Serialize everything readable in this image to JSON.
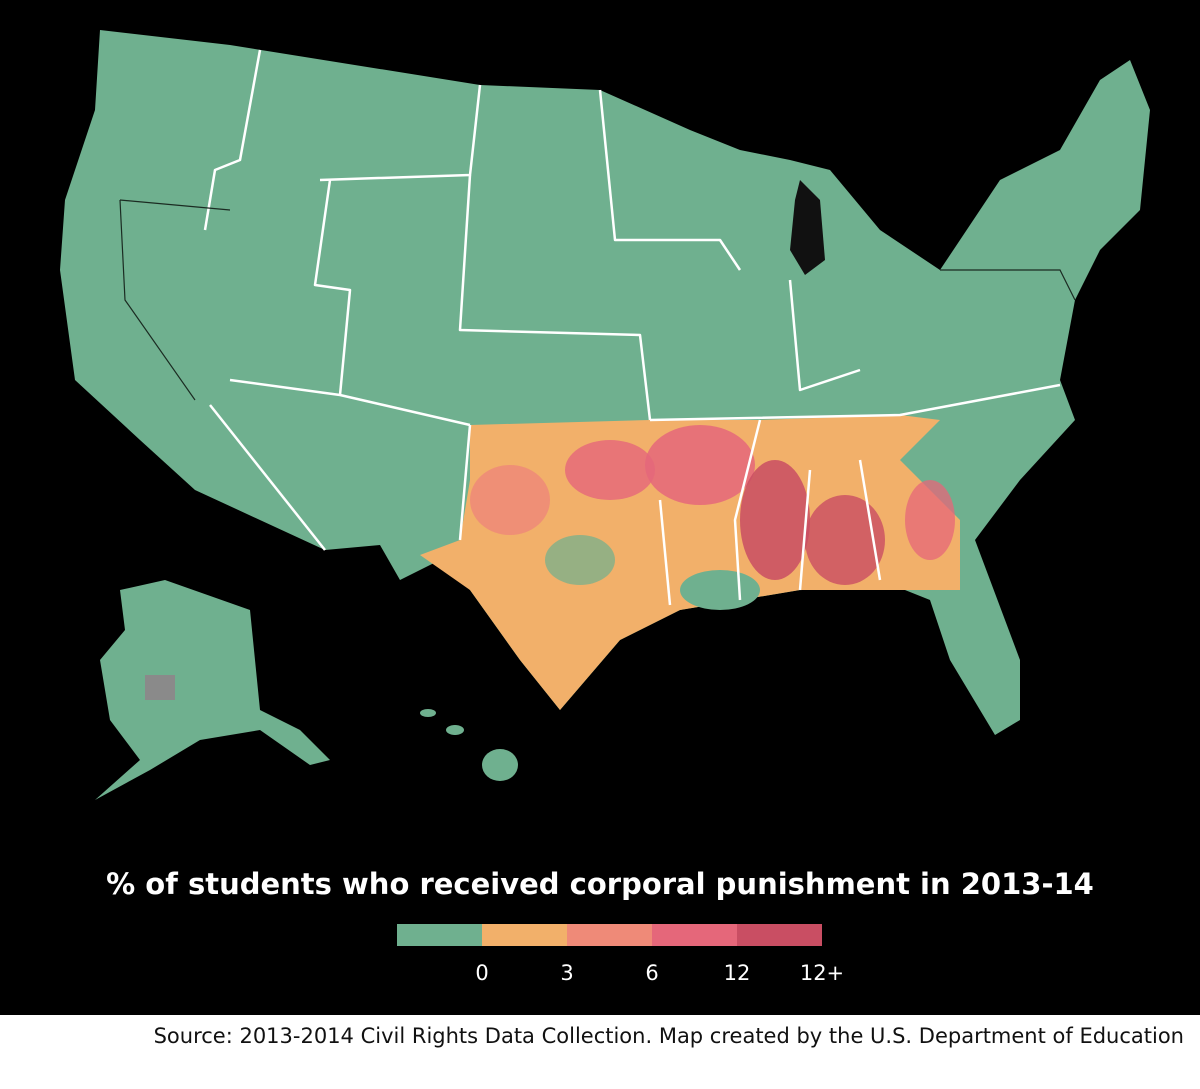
{
  "title": "% of students who received corporal punishment in 2013-14",
  "legend": [
    {
      "label": "0",
      "color": "#6fb08f"
    },
    {
      "label": "3",
      "color": "#f2b06a"
    },
    {
      "label": "6",
      "color": "#ef8a78"
    },
    {
      "label": "12",
      "color": "#e5677a"
    },
    {
      "label": "12+",
      "color": "#c94e63"
    }
  ],
  "source": "Source: 2013-2014 Civil Rights Data Collection. Map created by the U.S. Department of Education"
}
